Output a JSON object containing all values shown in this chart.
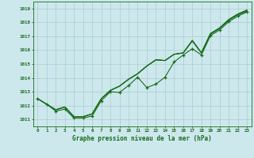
{
  "title": "Graphe pression niveau de la mer (hPa)",
  "bg_color": "#cce8ed",
  "grid_color": "#b0d4da",
  "line_color": "#1a6b1a",
  "x_labels": [
    "0",
    "1",
    "2",
    "3",
    "4",
    "5",
    "6",
    "7",
    "8",
    "9",
    "10",
    "11",
    "12",
    "13",
    "14",
    "15",
    "16",
    "17",
    "18",
    "19",
    "20",
    "21",
    "22",
    "23"
  ],
  "ylim": [
    1010.5,
    1019.5
  ],
  "yticks": [
    1011,
    1012,
    1013,
    1014,
    1015,
    1016,
    1017,
    1018,
    1019
  ],
  "series_smooth": [
    [
      1012.5,
      1012.1,
      1011.7,
      1011.9,
      1011.15,
      1011.15,
      1011.35,
      1012.45,
      1013.05,
      1013.35,
      1013.85,
      1014.25,
      1014.8,
      1015.25,
      1015.2,
      1015.65,
      1015.75,
      1016.65,
      1015.75,
      1017.15,
      1017.55,
      1018.15,
      1018.55,
      1018.8
    ],
    [
      1012.5,
      1012.1,
      1011.7,
      1011.9,
      1011.15,
      1011.15,
      1011.35,
      1012.45,
      1013.05,
      1013.35,
      1013.85,
      1014.25,
      1014.8,
      1015.25,
      1015.2,
      1015.65,
      1015.75,
      1016.65,
      1015.75,
      1017.15,
      1017.55,
      1018.15,
      1018.55,
      1018.85
    ]
  ],
  "series_dotted": [
    [
      1012.5,
      1012.1,
      1011.6,
      1011.75,
      1011.1,
      1011.1,
      1011.25,
      1012.35,
      1013.0,
      1012.95,
      1013.45,
      1014.05,
      1013.3,
      1013.55,
      1014.05,
      1015.15,
      1015.65,
      1016.1,
      1015.65,
      1017.1,
      1017.45,
      1018.05,
      1018.45,
      1018.75
    ]
  ],
  "marker_series": [
    1012.5,
    1012.1,
    1011.6,
    1011.75,
    1011.1,
    1011.1,
    1011.25,
    1012.35,
    1013.0,
    1012.95,
    1013.45,
    1014.05,
    1013.3,
    1013.55,
    1014.05,
    1015.15,
    1015.65,
    1016.1,
    1015.65,
    1017.1,
    1017.45,
    1018.05,
    1018.45,
    1018.75
  ],
  "line_start_high": [
    1012.5,
    1012.1,
    1011.7,
    1011.9,
    1011.15,
    1011.15,
    1011.35,
    1012.45,
    1013.05,
    1013.35,
    1013.85,
    1014.25,
    1014.8,
    1015.25,
    1015.2,
    1015.65,
    1015.75,
    1016.65,
    1015.75,
    1017.15,
    1017.55,
    1018.15,
    1018.55,
    1018.8
  ]
}
